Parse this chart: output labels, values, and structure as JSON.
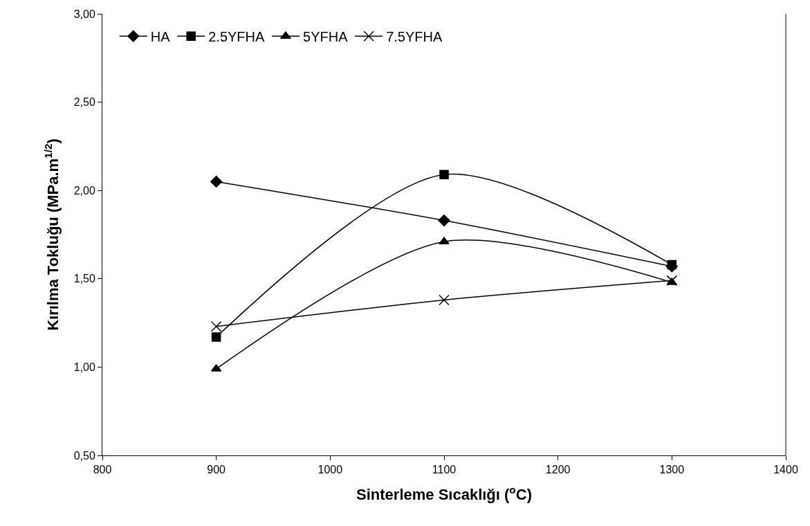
{
  "chart_data": {
    "type": "line",
    "xlabel": "Sinterleme Sıcaklığı ($^{o}$C)",
    "ylabel": "Kırılma Tokluğu (MPa.m$^{1/2}$)",
    "x": [
      900,
      1100,
      1300
    ],
    "series": [
      {
        "name": "HA",
        "color": "#000000",
        "marker": "diamond",
        "values": [
          2.05,
          1.83,
          1.57
        ]
      },
      {
        "name": "2.5YFHA",
        "color": "#000000",
        "marker": "square",
        "values": [
          1.17,
          2.09,
          1.58
        ]
      },
      {
        "name": "5YFHA",
        "color": "#000000",
        "marker": "triangle",
        "values": [
          0.99,
          1.71,
          1.48
        ]
      },
      {
        "name": "7.5YFHA",
        "color": "#000000",
        "marker": "cross",
        "values": [
          1.23,
          1.38,
          1.49
        ]
      }
    ],
    "xlim": [
      800,
      1400
    ],
    "xticks": [
      800,
      900,
      1000,
      1100,
      1200,
      1300,
      1400
    ],
    "ylim": [
      0.5,
      3.0
    ],
    "yticks": [
      {
        "value": 0.5,
        "label": "0,50"
      },
      {
        "value": 1.0,
        "label": "1,00"
      },
      {
        "value": 1.5,
        "label": "1,50"
      },
      {
        "value": 2.0,
        "label": "2,00"
      },
      {
        "value": 2.5,
        "label": "2,50"
      },
      {
        "value": 3.0,
        "label": "3,00"
      }
    ],
    "legend": "top left",
    "line_style": "solid"
  }
}
